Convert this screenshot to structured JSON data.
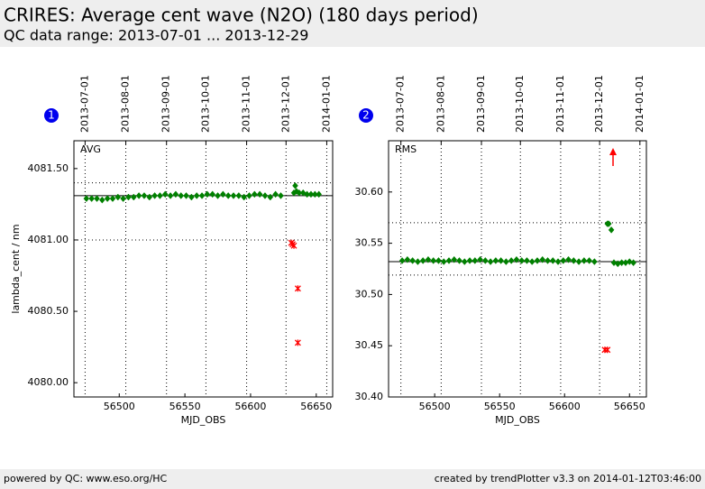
{
  "header": {
    "title": "CRIRES: Average cent wave (N2O) (180 days period)",
    "subtitle": "QC data range: 2013-07-01 ... 2013-12-29"
  },
  "chart_data": [
    {
      "type": "scatter",
      "badge": "1",
      "label": "AVG",
      "xlabel": "MJD_OBS",
      "ylabel": "lambda_cent / nm",
      "xlim": [
        56465.5,
        56662.5
      ],
      "ylim": [
        4079.9,
        4081.695
      ],
      "xticks": [
        56500,
        56550,
        56600,
        56650
      ],
      "yticks": [
        {
          "value": 4080.0,
          "label": "4080.00"
        },
        {
          "value": 4080.5,
          "label": "4080.50"
        },
        {
          "value": 4081.0,
          "label": "4081.00"
        },
        {
          "value": 4081.5,
          "label": "4081.50"
        }
      ],
      "x2ticks": [
        {
          "value": 56474,
          "label": "2013-07-01"
        },
        {
          "value": 56505,
          "label": "2013-08-01"
        },
        {
          "value": 56536,
          "label": "2013-09-01"
        },
        {
          "value": 56566,
          "label": "2013-10-01"
        },
        {
          "value": 56597,
          "label": "2013-11-01"
        },
        {
          "value": 56627,
          "label": "2013-12-01"
        },
        {
          "value": 56658,
          "label": "2014-01-01"
        }
      ],
      "hlines": [
        {
          "value": 4081.4,
          "style": "dotted"
        },
        {
          "value": 4081.0,
          "style": "dotted"
        },
        {
          "value": 4081.31,
          "style": "solid"
        }
      ],
      "series": [
        {
          "color": "#008000",
          "marker": "diamond",
          "x": [
            56475,
            56479,
            56483,
            56487,
            56491,
            56495,
            56499,
            56503,
            56507,
            56511,
            56515,
            56519,
            56523,
            56527,
            56531,
            56535,
            56539,
            56543,
            56547,
            56551,
            56555,
            56559,
            56563,
            56567,
            56571,
            56575,
            56579,
            56583,
            56587,
            56591,
            56595,
            56599,
            56603,
            56607,
            56611,
            56615,
            56619,
            56623,
            56633,
            56634,
            56635,
            56637,
            56640,
            56643,
            56646,
            56649,
            56652
          ],
          "values": [
            4081.29,
            4081.29,
            4081.29,
            4081.28,
            4081.29,
            4081.29,
            4081.3,
            4081.29,
            4081.3,
            4081.3,
            4081.31,
            4081.31,
            4081.3,
            4081.31,
            4081.31,
            4081.32,
            4081.31,
            4081.32,
            4081.31,
            4081.31,
            4081.3,
            4081.31,
            4081.31,
            4081.32,
            4081.32,
            4081.31,
            4081.32,
            4081.31,
            4081.31,
            4081.31,
            4081.3,
            4081.31,
            4081.32,
            4081.32,
            4081.31,
            4081.3,
            4081.32,
            4081.31,
            4081.33,
            4081.38,
            4081.34,
            4081.33,
            4081.33,
            4081.32,
            4081.32,
            4081.32,
            4081.32
          ]
        },
        {
          "color": "#ff0000",
          "marker": "x",
          "x": [
            56631,
            56632,
            56633,
            56636,
            56636
          ],
          "values": [
            4080.98,
            4080.97,
            4080.96,
            4080.66,
            4080.28
          ]
        }
      ]
    },
    {
      "type": "scatter",
      "badge": "2",
      "label": "RMS",
      "xlabel": "MJD_OBS",
      "xlim": [
        56464.5,
        56663
      ],
      "ylim": [
        30.4,
        30.65
      ],
      "xticks": [
        56500,
        56550,
        56600,
        56650
      ],
      "yticks": [
        {
          "value": 30.4,
          "label": "30.40"
        },
        30.45,
        {
          "value": 30.5,
          "label": "30.50"
        },
        30.55,
        {
          "value": 30.6,
          "label": "30.60"
        }
      ],
      "x2ticks": [
        {
          "value": 56474,
          "label": "2013-07-01"
        },
        {
          "value": 56505,
          "label": "2013-08-01"
        },
        {
          "value": 56536,
          "label": "2013-09-01"
        },
        {
          "value": 56566,
          "label": "2013-10-01"
        },
        {
          "value": 56597,
          "label": "2013-11-01"
        },
        {
          "value": 56627,
          "label": "2013-12-01"
        },
        {
          "value": 56658,
          "label": "2014-01-01"
        }
      ],
      "hlines": [
        {
          "value": 30.57,
          "style": "dotted"
        },
        {
          "value": 30.519,
          "style": "dotted"
        },
        {
          "value": 30.532,
          "style": "solid"
        }
      ],
      "series": [
        {
          "color": "#008000",
          "marker": "diamond",
          "x": [
            56475,
            56479,
            56483,
            56487,
            56491,
            56495,
            56499,
            56503,
            56507,
            56511,
            56515,
            56519,
            56523,
            56527,
            56531,
            56535,
            56539,
            56543,
            56547,
            56551,
            56555,
            56559,
            56563,
            56567,
            56571,
            56575,
            56579,
            56583,
            56587,
            56591,
            56595,
            56599,
            56603,
            56607,
            56611,
            56615,
            56619,
            56623,
            56633,
            56634,
            56636,
            56638,
            56641,
            56644,
            56647,
            56650,
            56653
          ],
          "values": [
            30.533,
            30.534,
            30.533,
            30.532,
            30.533,
            30.534,
            30.533,
            30.533,
            30.532,
            30.533,
            30.534,
            30.533,
            30.532,
            30.533,
            30.533,
            30.534,
            30.533,
            30.532,
            30.533,
            30.533,
            30.532,
            30.533,
            30.534,
            30.533,
            30.533,
            30.532,
            30.533,
            30.534,
            30.533,
            30.533,
            30.532,
            30.533,
            30.534,
            30.533,
            30.532,
            30.533,
            30.533,
            30.532,
            30.569,
            30.569,
            30.563,
            30.531,
            30.53,
            30.531,
            30.531,
            30.532,
            30.531
          ]
        },
        {
          "color": "#ff0000",
          "marker": "x",
          "x": [
            56631,
            56633
          ],
          "values": [
            30.446,
            30.446
          ]
        }
      ]
    }
  ],
  "footer": {
    "left": "powered by QC: www.eso.org/HC",
    "right": "created by trendPlotter v3.3 on 2014-01-12T03:46:00"
  }
}
